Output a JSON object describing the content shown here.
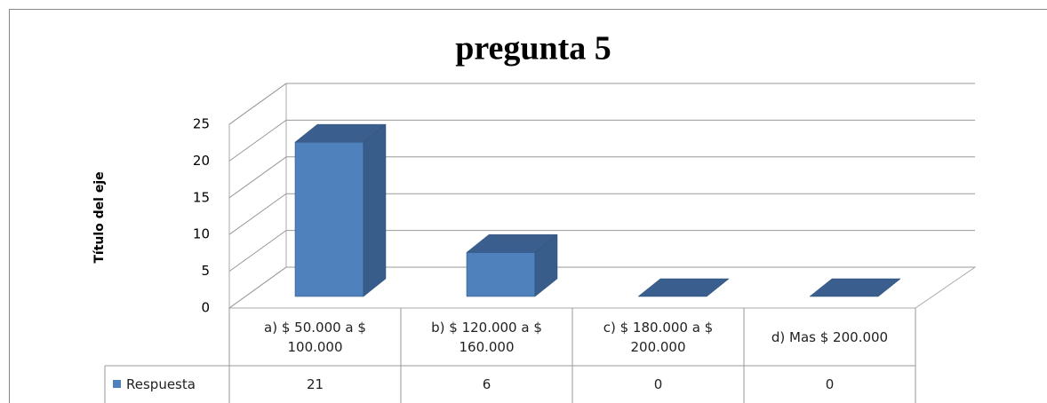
{
  "chart_data": {
    "type": "bar3d",
    "title": "pregunta 5",
    "y_label": "Título del eje",
    "categories": [
      "a) $ 50.000 a $ 100.000",
      "b) $ 120.000 a $ 160.000",
      "c) $ 180.000 a $ 200.000",
      "d) Mas $ 200.000"
    ],
    "series": [
      {
        "name": "Respuesta",
        "color": "#4f81bd",
        "values": [
          21,
          6,
          0,
          0
        ]
      }
    ],
    "ylim": [
      0,
      25
    ],
    "yticks": [
      0,
      5,
      10,
      15,
      20,
      25
    ],
    "grid": true,
    "data_table": true
  }
}
